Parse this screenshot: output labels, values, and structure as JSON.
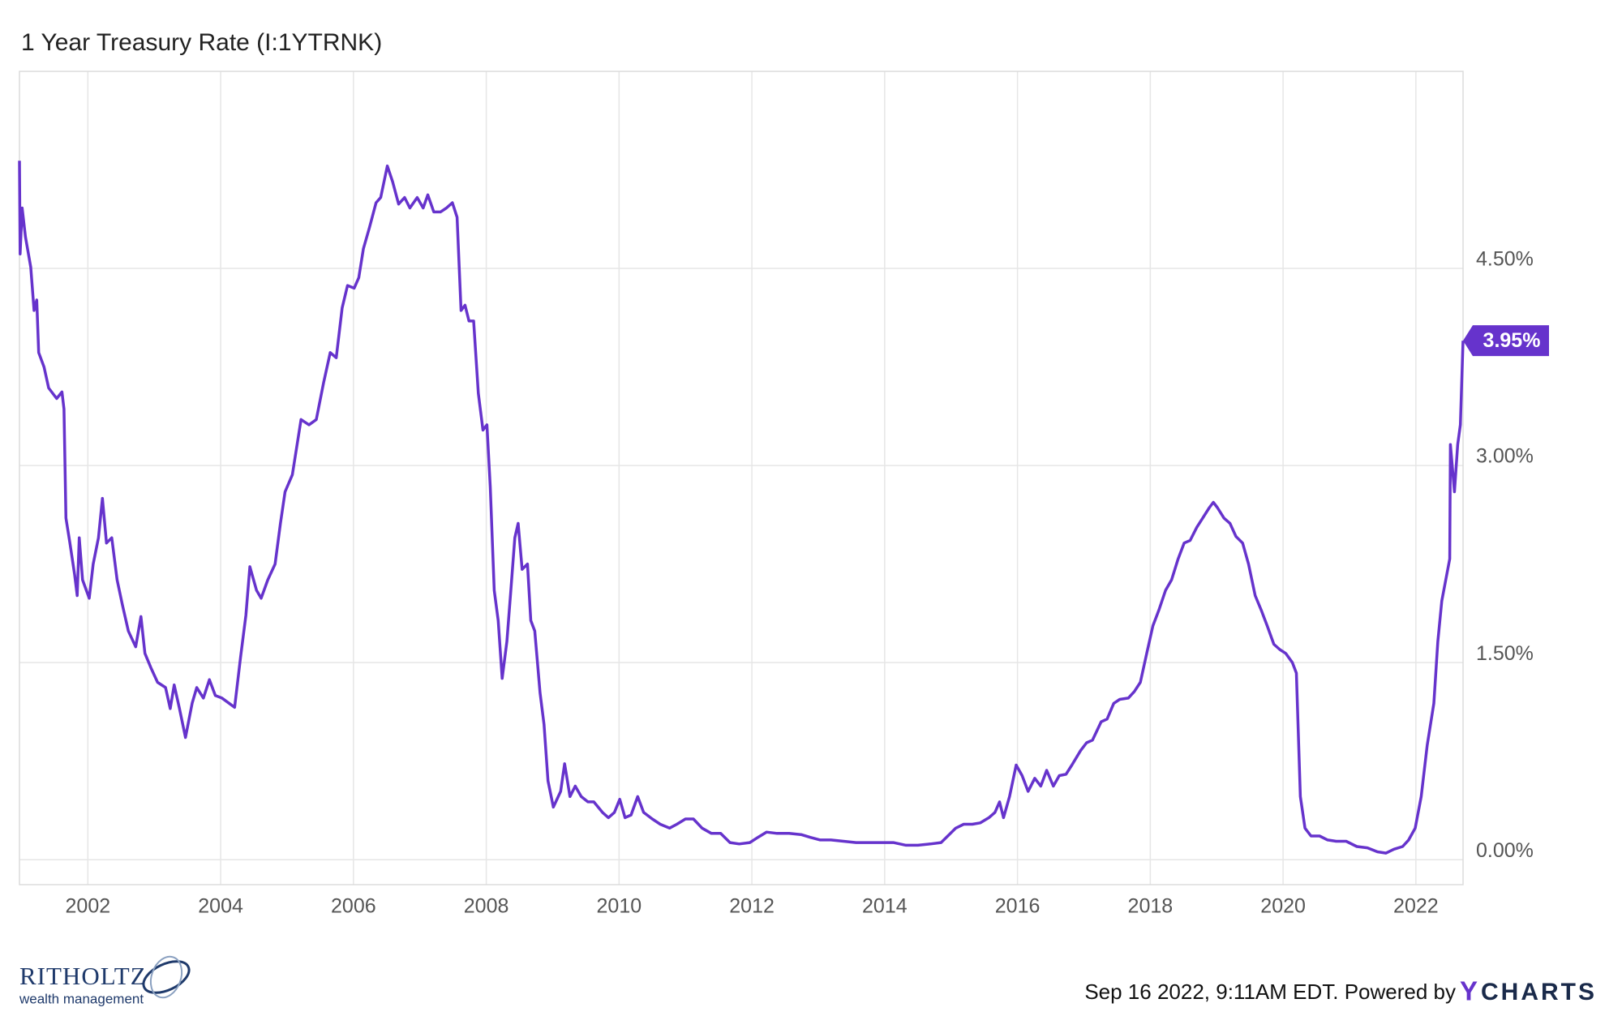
{
  "chart_data": {
    "type": "line",
    "title": "1 Year Treasury Rate (I:1YTRNK)",
    "color": "#6633cc",
    "grid": true,
    "xlim": [
      2000.97,
      2022.71
    ],
    "ylim": [
      -0.19,
      6.0
    ],
    "xticks": [
      2002,
      2004,
      2006,
      2008,
      2010,
      2012,
      2014,
      2016,
      2018,
      2020,
      2022
    ],
    "yticks": [
      {
        "value": 0,
        "label": "0.00%"
      },
      {
        "value": 1.5,
        "label": "1.50%"
      },
      {
        "value": 3,
        "label": "3.00%"
      },
      {
        "value": 4.5,
        "label": "4.50%"
      }
    ],
    "x": [
      2000.97,
      2000.98,
      2001.01,
      2001.06,
      2001.14,
      2001.19,
      2001.23,
      2001.26,
      2001.34,
      2001.41,
      2001.53,
      2001.61,
      2001.64,
      2001.67,
      2001.73,
      2001.8,
      2001.84,
      2001.87,
      2001.92,
      2002.02,
      2002.08,
      2002.16,
      2002.22,
      2002.28,
      2002.36,
      2002.44,
      2002.52,
      2002.61,
      2002.72,
      2002.8,
      2002.86,
      2002.95,
      2003.05,
      2003.17,
      2003.24,
      2003.3,
      2003.38,
      2003.47,
      2003.57,
      2003.64,
      2003.74,
      2003.83,
      2003.92,
      2004.02,
      2004.21,
      2004.3,
      2004.38,
      2004.44,
      2004.54,
      2004.61,
      2004.71,
      2004.82,
      2004.9,
      2004.97,
      2005.08,
      2005.21,
      2005.33,
      2005.44,
      2005.55,
      2005.65,
      2005.74,
      2005.83,
      2005.91,
      2006.01,
      2006.08,
      2006.15,
      2006.24,
      2006.34,
      2006.41,
      2006.51,
      2006.59,
      2006.68,
      2006.77,
      2006.85,
      2006.96,
      2007.05,
      2007.12,
      2007.21,
      2007.31,
      2007.4,
      2007.49,
      2007.56,
      2007.62,
      2007.68,
      2007.74,
      2007.81,
      2007.88,
      2007.95,
      2008.01,
      2008.06,
      2008.12,
      2008.18,
      2008.24,
      2008.31,
      2008.37,
      2008.43,
      2008.48,
      2008.54,
      2008.62,
      2008.67,
      2008.73,
      2008.81,
      2008.87,
      2008.93,
      2009.01,
      2009.12,
      2009.18,
      2009.26,
      2009.34,
      2009.43,
      2009.53,
      2009.62,
      2009.75,
      2009.84,
      2009.93,
      2010.01,
      2010.09,
      2010.18,
      2010.28,
      2010.37,
      2010.5,
      2010.62,
      2010.76,
      2010.87,
      2011.0,
      2011.12,
      2011.25,
      2011.39,
      2011.53,
      2011.67,
      2011.81,
      2011.97,
      2012.09,
      2012.22,
      2012.38,
      2012.56,
      2012.75,
      2012.88,
      2013.03,
      2013.19,
      2013.38,
      2013.57,
      2013.75,
      2013.94,
      2014.13,
      2014.32,
      2014.5,
      2014.69,
      2014.85,
      2014.97,
      2015.07,
      2015.19,
      2015.32,
      2015.44,
      2015.57,
      2015.66,
      2015.73,
      2015.79,
      2015.88,
      2015.98,
      2016.07,
      2016.16,
      2016.26,
      2016.35,
      2016.44,
      2016.54,
      2016.63,
      2016.73,
      2016.82,
      2016.95,
      2017.04,
      2017.13,
      2017.26,
      2017.35,
      2017.45,
      2017.54,
      2017.67,
      2017.76,
      2017.85,
      2017.95,
      2018.04,
      2018.13,
      2018.23,
      2018.32,
      2018.42,
      2018.51,
      2018.6,
      2018.7,
      2018.79,
      2018.89,
      2018.95,
      2019.01,
      2019.11,
      2019.2,
      2019.29,
      2019.39,
      2019.48,
      2019.58,
      2019.67,
      2019.76,
      2019.86,
      2019.95,
      2020.04,
      2020.14,
      2020.2,
      2020.26,
      2020.33,
      2020.42,
      2020.55,
      2020.67,
      2020.8,
      2020.95,
      2021.11,
      2021.27,
      2021.42,
      2021.55,
      2021.67,
      2021.8,
      2021.89,
      2021.99,
      2022.08,
      2022.17,
      2022.27,
      2022.33,
      2022.39,
      2022.45,
      2022.51,
      2022.52,
      2022.58,
      2022.63,
      2022.67,
      2022.71
    ],
    "values": [
      5.32,
      4.61,
      4.96,
      4.74,
      4.51,
      4.18,
      4.26,
      3.86,
      3.75,
      3.59,
      3.51,
      3.56,
      3.43,
      2.6,
      2.41,
      2.17,
      2.01,
      2.45,
      2.13,
      1.99,
      2.25,
      2.45,
      2.75,
      2.41,
      2.45,
      2.13,
      1.94,
      1.74,
      1.62,
      1.85,
      1.57,
      1.46,
      1.35,
      1.31,
      1.15,
      1.33,
      1.15,
      0.93,
      1.19,
      1.31,
      1.23,
      1.37,
      1.25,
      1.23,
      1.16,
      1.54,
      1.86,
      2.23,
      2.05,
      1.99,
      2.13,
      2.25,
      2.56,
      2.8,
      2.93,
      3.35,
      3.31,
      3.35,
      3.63,
      3.86,
      3.82,
      4.2,
      4.37,
      4.35,
      4.43,
      4.65,
      4.81,
      5.0,
      5.04,
      5.28,
      5.16,
      4.99,
      5.04,
      4.96,
      5.04,
      4.96,
      5.06,
      4.93,
      4.93,
      4.96,
      5.0,
      4.89,
      4.18,
      4.22,
      4.1,
      4.1,
      3.55,
      3.27,
      3.31,
      2.84,
      2.05,
      1.82,
      1.38,
      1.66,
      2.05,
      2.45,
      2.56,
      2.21,
      2.25,
      1.82,
      1.74,
      1.27,
      1.03,
      0.6,
      0.4,
      0.52,
      0.73,
      0.48,
      0.56,
      0.48,
      0.44,
      0.44,
      0.36,
      0.32,
      0.36,
      0.46,
      0.32,
      0.34,
      0.48,
      0.36,
      0.31,
      0.27,
      0.24,
      0.27,
      0.31,
      0.31,
      0.24,
      0.2,
      0.2,
      0.13,
      0.12,
      0.13,
      0.17,
      0.21,
      0.2,
      0.2,
      0.19,
      0.17,
      0.15,
      0.15,
      0.14,
      0.13,
      0.13,
      0.13,
      0.13,
      0.11,
      0.11,
      0.12,
      0.13,
      0.19,
      0.24,
      0.27,
      0.27,
      0.28,
      0.32,
      0.36,
      0.44,
      0.32,
      0.48,
      0.72,
      0.64,
      0.52,
      0.62,
      0.56,
      0.68,
      0.56,
      0.64,
      0.65,
      0.72,
      0.83,
      0.89,
      0.91,
      1.05,
      1.07,
      1.19,
      1.22,
      1.23,
      1.28,
      1.35,
      1.58,
      1.78,
      1.9,
      2.05,
      2.13,
      2.29,
      2.41,
      2.43,
      2.53,
      2.6,
      2.68,
      2.72,
      2.68,
      2.6,
      2.56,
      2.46,
      2.41,
      2.25,
      2.01,
      1.9,
      1.78,
      1.64,
      1.6,
      1.57,
      1.5,
      1.42,
      0.48,
      0.24,
      0.18,
      0.18,
      0.15,
      0.14,
      0.14,
      0.1,
      0.09,
      0.06,
      0.05,
      0.08,
      0.1,
      0.15,
      0.24,
      0.48,
      0.87,
      1.19,
      1.66,
      1.97,
      2.13,
      2.29,
      3.16,
      2.8,
      3.16,
      3.31,
      3.95
    ],
    "annotations": [
      {
        "x": 2022.71,
        "y": 3.95,
        "label": "3.95%"
      }
    ],
    "footer": "Sep 16 2022, 9:11AM EDT. Powered by",
    "footer_logo": {
      "mark": "Y",
      "rest": "CHARTS"
    },
    "brand": "RITHOLTZ",
    "brand_tagline": "wealth management"
  }
}
